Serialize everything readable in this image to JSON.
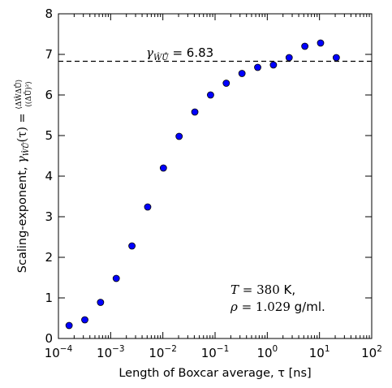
{
  "chart_data": {
    "type": "scatter",
    "xscale": "log",
    "xlim": [
      0.0001,
      100
    ],
    "ylim": [
      0,
      8
    ],
    "xticks": [
      {
        "value": 0.0001,
        "base": "10",
        "exp": "−4"
      },
      {
        "value": 0.001,
        "base": "10",
        "exp": "−3"
      },
      {
        "value": 0.01,
        "base": "10",
        "exp": "−2"
      },
      {
        "value": 0.1,
        "base": "10",
        "exp": "−1"
      },
      {
        "value": 1,
        "base": "10",
        "exp": "0"
      },
      {
        "value": 10,
        "base": "10",
        "exp": "1"
      },
      {
        "value": 100,
        "base": "10",
        "exp": "2"
      }
    ],
    "yticks": [
      {
        "value": 0,
        "label": "0"
      },
      {
        "value": 1,
        "label": "1"
      },
      {
        "value": 2,
        "label": "2"
      },
      {
        "value": 3,
        "label": "3"
      },
      {
        "value": 4,
        "label": "4"
      },
      {
        "value": 5,
        "label": "5"
      },
      {
        "value": 6,
        "label": "6"
      },
      {
        "value": 7,
        "label": "7"
      },
      {
        "value": 8,
        "label": "8"
      }
    ],
    "xlabel": "Length of Boxcar average, τ [ns]",
    "ylabel": {
      "prefix": "Scaling-exponent, ",
      "gamma": "γ",
      "gamma_sub": "ŴŮ",
      "arg": "(τ) = ",
      "numerator": "⟨ΔŴΔŮ⟩",
      "denominator": "⟨(ΔŮ)²⟩"
    },
    "points": [
      {
        "x": 0.00016,
        "y": 0.32
      },
      {
        "x": 0.00032,
        "y": 0.46
      },
      {
        "x": 0.00064,
        "y": 0.89
      },
      {
        "x": 0.00128,
        "y": 1.48
      },
      {
        "x": 0.00256,
        "y": 2.28
      },
      {
        "x": 0.00512,
        "y": 3.24
      },
      {
        "x": 0.01024,
        "y": 4.2
      },
      {
        "x": 0.02048,
        "y": 4.98
      },
      {
        "x": 0.04096,
        "y": 5.58
      },
      {
        "x": 0.08192,
        "y": 6.0
      },
      {
        "x": 0.16384,
        "y": 6.29
      },
      {
        "x": 0.32768,
        "y": 6.53
      },
      {
        "x": 0.65536,
        "y": 6.68
      },
      {
        "x": 1.31072,
        "y": 6.74
      },
      {
        "x": 2.62144,
        "y": 6.92
      },
      {
        "x": 5.24288,
        "y": 7.2
      },
      {
        "x": 10.48576,
        "y": 7.28
      },
      {
        "x": 20.97152,
        "y": 6.92
      }
    ],
    "marker_color": "#0000ff",
    "reference_line": {
      "y": 6.83,
      "style": "dashed",
      "label_symbol": "γ",
      "label_sub": "ŴŮ",
      "label_value": " = 6.83"
    },
    "annotation": {
      "line1_var": "T",
      "line1_eq": " = 380",
      "line1_unit": " K,",
      "line2_var": "ρ",
      "line2_eq": " = 1.029",
      "line2_unit": " g/ml."
    }
  }
}
